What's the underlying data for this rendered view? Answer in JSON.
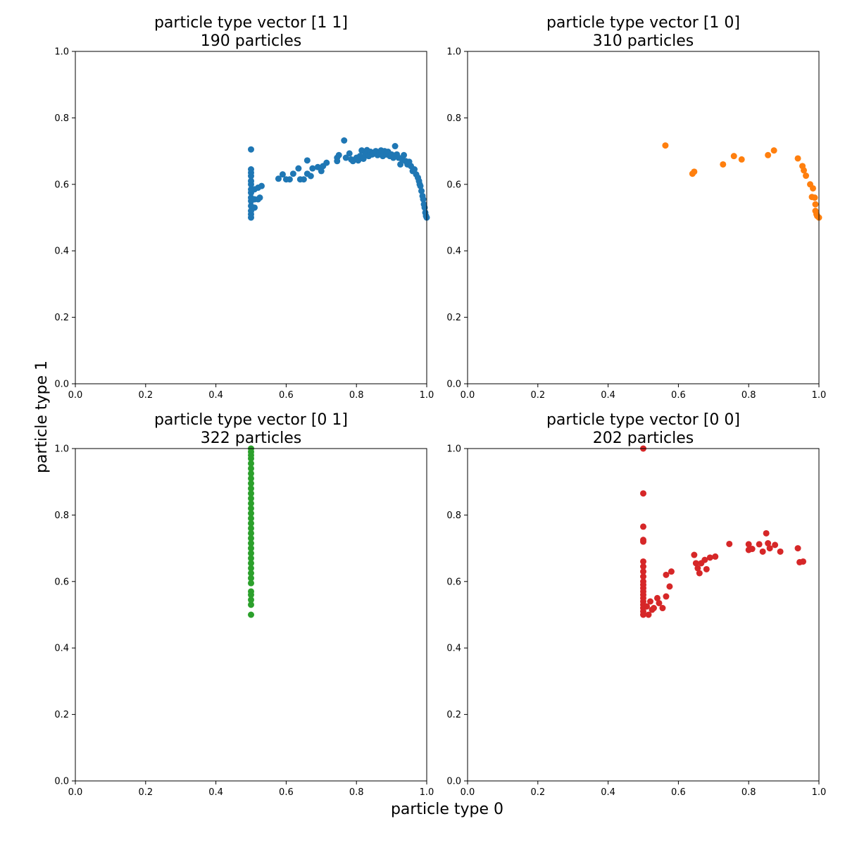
{
  "figure": {
    "xlabel": "particle type 0",
    "ylabel": "particle type 1"
  },
  "chart_data": [
    {
      "type": "scatter",
      "title": "particle type vector [1 1]",
      "subtitle": "190 particles",
      "color": "#1f77b4",
      "xlim": [
        0,
        1
      ],
      "ylim": [
        0,
        1
      ],
      "xticks": [
        "0.0",
        "0.2",
        "0.4",
        "0.6",
        "0.8",
        "1.0"
      ],
      "yticks": [
        "0.0",
        "0.2",
        "0.4",
        "0.6",
        "0.8",
        "1.0"
      ],
      "points": [
        [
          0.5,
          0.5
        ],
        [
          0.5,
          0.51
        ],
        [
          0.5,
          0.52
        ],
        [
          0.5,
          0.535
        ],
        [
          0.5,
          0.55
        ],
        [
          0.5,
          0.56
        ],
        [
          0.5,
          0.575
        ],
        [
          0.5,
          0.585
        ],
        [
          0.5,
          0.6
        ],
        [
          0.5,
          0.61
        ],
        [
          0.5,
          0.625
        ],
        [
          0.5,
          0.635
        ],
        [
          0.5,
          0.645
        ],
        [
          0.5,
          0.705
        ],
        [
          0.51,
          0.53
        ],
        [
          0.51,
          0.555
        ],
        [
          0.51,
          0.585
        ],
        [
          0.52,
          0.555
        ],
        [
          0.52,
          0.59
        ],
        [
          0.525,
          0.56
        ],
        [
          0.53,
          0.595
        ],
        [
          0.578,
          0.617
        ],
        [
          0.59,
          0.63
        ],
        [
          0.6,
          0.615
        ],
        [
          0.61,
          0.615
        ],
        [
          0.62,
          0.632
        ],
        [
          0.635,
          0.648
        ],
        [
          0.64,
          0.615
        ],
        [
          0.65,
          0.615
        ],
        [
          0.66,
          0.672
        ],
        [
          0.66,
          0.632
        ],
        [
          0.67,
          0.625
        ],
        [
          0.675,
          0.648
        ],
        [
          0.69,
          0.652
        ],
        [
          0.7,
          0.64
        ],
        [
          0.705,
          0.655
        ],
        [
          0.715,
          0.665
        ],
        [
          0.745,
          0.68
        ],
        [
          0.745,
          0.67
        ],
        [
          0.75,
          0.688
        ],
        [
          0.765,
          0.732
        ],
        [
          0.77,
          0.68
        ],
        [
          0.78,
          0.693
        ],
        [
          0.785,
          0.675
        ],
        [
          0.79,
          0.67
        ],
        [
          0.8,
          0.68
        ],
        [
          0.805,
          0.672
        ],
        [
          0.81,
          0.685
        ],
        [
          0.815,
          0.702
        ],
        [
          0.82,
          0.677
        ],
        [
          0.825,
          0.69
        ],
        [
          0.83,
          0.703
        ],
        [
          0.835,
          0.685
        ],
        [
          0.84,
          0.698
        ],
        [
          0.845,
          0.69
        ],
        [
          0.85,
          0.695
        ],
        [
          0.855,
          0.7
        ],
        [
          0.86,
          0.688
        ],
        [
          0.865,
          0.695
        ],
        [
          0.87,
          0.702
        ],
        [
          0.875,
          0.685
        ],
        [
          0.88,
          0.7
        ],
        [
          0.885,
          0.69
        ],
        [
          0.89,
          0.698
        ],
        [
          0.895,
          0.685
        ],
        [
          0.9,
          0.69
        ],
        [
          0.905,
          0.68
        ],
        [
          0.91,
          0.715
        ],
        [
          0.915,
          0.69
        ],
        [
          0.92,
          0.68
        ],
        [
          0.925,
          0.66
        ],
        [
          0.93,
          0.675
        ],
        [
          0.935,
          0.688
        ],
        [
          0.94,
          0.67
        ],
        [
          0.945,
          0.66
        ],
        [
          0.95,
          0.668
        ],
        [
          0.955,
          0.655
        ],
        [
          0.96,
          0.64
        ],
        [
          0.965,
          0.645
        ],
        [
          0.97,
          0.63
        ],
        [
          0.975,
          0.62
        ],
        [
          0.978,
          0.61
        ],
        [
          0.98,
          0.6
        ],
        [
          0.982,
          0.595
        ],
        [
          0.985,
          0.58
        ],
        [
          0.988,
          0.565
        ],
        [
          0.99,
          0.555
        ],
        [
          0.992,
          0.54
        ],
        [
          0.994,
          0.53
        ],
        [
          0.996,
          0.515
        ],
        [
          0.998,
          0.505
        ],
        [
          1.0,
          0.5
        ]
      ]
    },
    {
      "type": "scatter",
      "title": "particle type vector [1 0]",
      "subtitle": "310 particles",
      "color": "#ff7f0e",
      "xlim": [
        0,
        1
      ],
      "ylim": [
        0,
        1
      ],
      "xticks": [
        "0.0",
        "0.2",
        "0.4",
        "0.6",
        "0.8",
        "1.0"
      ],
      "yticks": [
        "0.0",
        "0.2",
        "0.4",
        "0.6",
        "0.8",
        "1.0"
      ],
      "points": [
        [
          0.563,
          0.717
        ],
        [
          0.64,
          0.632
        ],
        [
          0.645,
          0.638
        ],
        [
          0.727,
          0.66
        ],
        [
          0.758,
          0.685
        ],
        [
          0.78,
          0.675
        ],
        [
          0.855,
          0.688
        ],
        [
          0.872,
          0.702
        ],
        [
          0.94,
          0.678
        ],
        [
          0.953,
          0.655
        ],
        [
          0.957,
          0.642
        ],
        [
          0.963,
          0.626
        ],
        [
          0.975,
          0.6
        ],
        [
          0.98,
          0.562
        ],
        [
          0.983,
          0.588
        ],
        [
          0.988,
          0.56
        ],
        [
          0.99,
          0.54
        ],
        [
          0.99,
          0.52
        ],
        [
          0.993,
          0.51
        ],
        [
          0.995,
          0.505
        ],
        [
          1.0,
          0.5
        ]
      ]
    },
    {
      "type": "scatter",
      "title": "particle type vector [0 1]",
      "subtitle": "322 particles",
      "color": "#2ca02c",
      "xlim": [
        0,
        1
      ],
      "ylim": [
        0,
        1
      ],
      "xticks": [
        "0.0",
        "0.2",
        "0.4",
        "0.6",
        "0.8",
        "1.0"
      ],
      "yticks": [
        "0.0",
        "0.2",
        "0.4",
        "0.6",
        "0.8",
        "1.0"
      ],
      "points": [
        [
          0.5,
          0.5
        ],
        [
          0.5,
          0.53
        ],
        [
          0.5,
          0.545
        ],
        [
          0.5,
          0.56
        ],
        [
          0.5,
          0.57
        ],
        [
          0.5,
          0.595
        ],
        [
          0.5,
          0.61
        ],
        [
          0.5,
          0.625
        ],
        [
          0.5,
          0.64
        ],
        [
          0.5,
          0.655
        ],
        [
          0.5,
          0.67
        ],
        [
          0.5,
          0.685
        ],
        [
          0.5,
          0.7
        ],
        [
          0.5,
          0.715
        ],
        [
          0.5,
          0.73
        ],
        [
          0.5,
          0.745
        ],
        [
          0.5,
          0.76
        ],
        [
          0.5,
          0.775
        ],
        [
          0.5,
          0.79
        ],
        [
          0.5,
          0.805
        ],
        [
          0.5,
          0.82
        ],
        [
          0.5,
          0.835
        ],
        [
          0.5,
          0.85
        ],
        [
          0.5,
          0.865
        ],
        [
          0.5,
          0.88
        ],
        [
          0.5,
          0.895
        ],
        [
          0.5,
          0.91
        ],
        [
          0.5,
          0.925
        ],
        [
          0.5,
          0.94
        ],
        [
          0.5,
          0.955
        ],
        [
          0.5,
          0.97
        ],
        [
          0.5,
          0.98
        ],
        [
          0.5,
          0.99
        ],
        [
          0.5,
          1.0
        ]
      ]
    },
    {
      "type": "scatter",
      "title": "particle type vector [0 0]",
      "subtitle": "202 particles",
      "color": "#d62728",
      "xlim": [
        0,
        1
      ],
      "ylim": [
        0,
        1
      ],
      "xticks": [
        "0.0",
        "0.2",
        "0.4",
        "0.6",
        "0.8",
        "1.0"
      ],
      "yticks": [
        "0.0",
        "0.2",
        "0.4",
        "0.6",
        "0.8",
        "1.0"
      ],
      "points": [
        [
          0.5,
          1.0
        ],
        [
          0.5,
          0.865
        ],
        [
          0.5,
          0.765
        ],
        [
          0.5,
          0.725
        ],
        [
          0.5,
          0.72
        ],
        [
          0.5,
          0.66
        ],
        [
          0.5,
          0.645
        ],
        [
          0.5,
          0.63
        ],
        [
          0.5,
          0.615
        ],
        [
          0.5,
          0.6
        ],
        [
          0.5,
          0.59
        ],
        [
          0.5,
          0.58
        ],
        [
          0.5,
          0.57
        ],
        [
          0.5,
          0.56
        ],
        [
          0.5,
          0.55
        ],
        [
          0.5,
          0.54
        ],
        [
          0.5,
          0.53
        ],
        [
          0.5,
          0.52
        ],
        [
          0.5,
          0.51
        ],
        [
          0.5,
          0.5
        ],
        [
          0.51,
          0.525
        ],
        [
          0.515,
          0.5
        ],
        [
          0.52,
          0.54
        ],
        [
          0.525,
          0.515
        ],
        [
          0.53,
          0.52
        ],
        [
          0.54,
          0.55
        ],
        [
          0.545,
          0.535
        ],
        [
          0.555,
          0.52
        ],
        [
          0.565,
          0.555
        ],
        [
          0.565,
          0.62
        ],
        [
          0.575,
          0.585
        ],
        [
          0.58,
          0.63
        ],
        [
          0.645,
          0.68
        ],
        [
          0.65,
          0.655
        ],
        [
          0.655,
          0.64
        ],
        [
          0.66,
          0.625
        ],
        [
          0.665,
          0.655
        ],
        [
          0.675,
          0.665
        ],
        [
          0.68,
          0.637
        ],
        [
          0.69,
          0.672
        ],
        [
          0.705,
          0.675
        ],
        [
          0.745,
          0.713
        ],
        [
          0.8,
          0.695
        ],
        [
          0.8,
          0.712
        ],
        [
          0.81,
          0.698
        ],
        [
          0.83,
          0.712
        ],
        [
          0.84,
          0.69
        ],
        [
          0.85,
          0.745
        ],
        [
          0.855,
          0.715
        ],
        [
          0.86,
          0.7
        ],
        [
          0.875,
          0.71
        ],
        [
          0.89,
          0.69
        ],
        [
          0.94,
          0.7
        ],
        [
          0.945,
          0.658
        ],
        [
          0.955,
          0.66
        ]
      ]
    }
  ]
}
